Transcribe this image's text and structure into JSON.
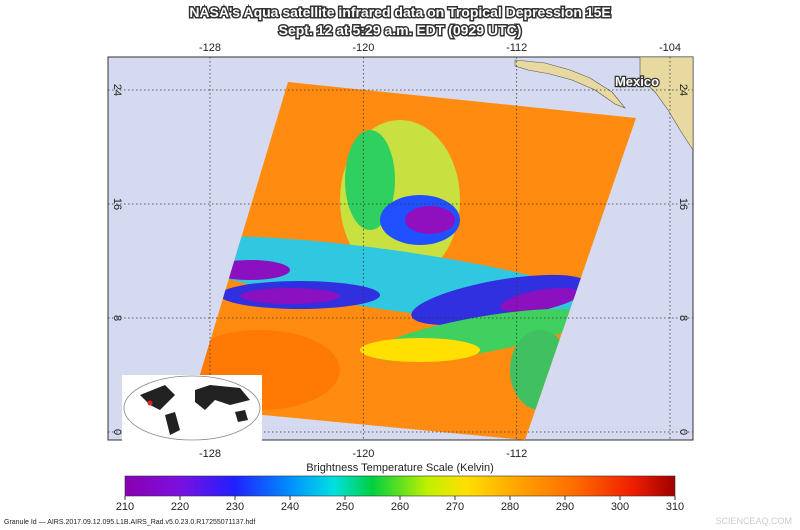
{
  "map": {
    "title": [
      "NASA's Aqua satellite infrared data on Tropical Depression 15E",
      "Sept. 12 at 5:29 a.m. EDT (0929 UTC)"
    ],
    "lon_ticks_top": [
      -128,
      -120,
      -112,
      -104
    ],
    "lon_ticks_bottom": [
      -128,
      -120,
      -112
    ],
    "lat_ticks": [
      24,
      16,
      8,
      0
    ],
    "land_label": "Mexico",
    "colorbar": {
      "title": "Brightness Temperature Scale (Kelvin)",
      "range": [
        210,
        310
      ],
      "ticks": [
        210,
        220,
        230,
        240,
        250,
        260,
        270,
        280,
        290,
        300,
        310
      ]
    },
    "granule_id": "Granule Id — AIRS.2017.09.12.095.L1B.AIRS_Rad.v5.0.23.0.R17255071137.hdf",
    "watermark": "SCIENCEAQ.COM"
  }
}
